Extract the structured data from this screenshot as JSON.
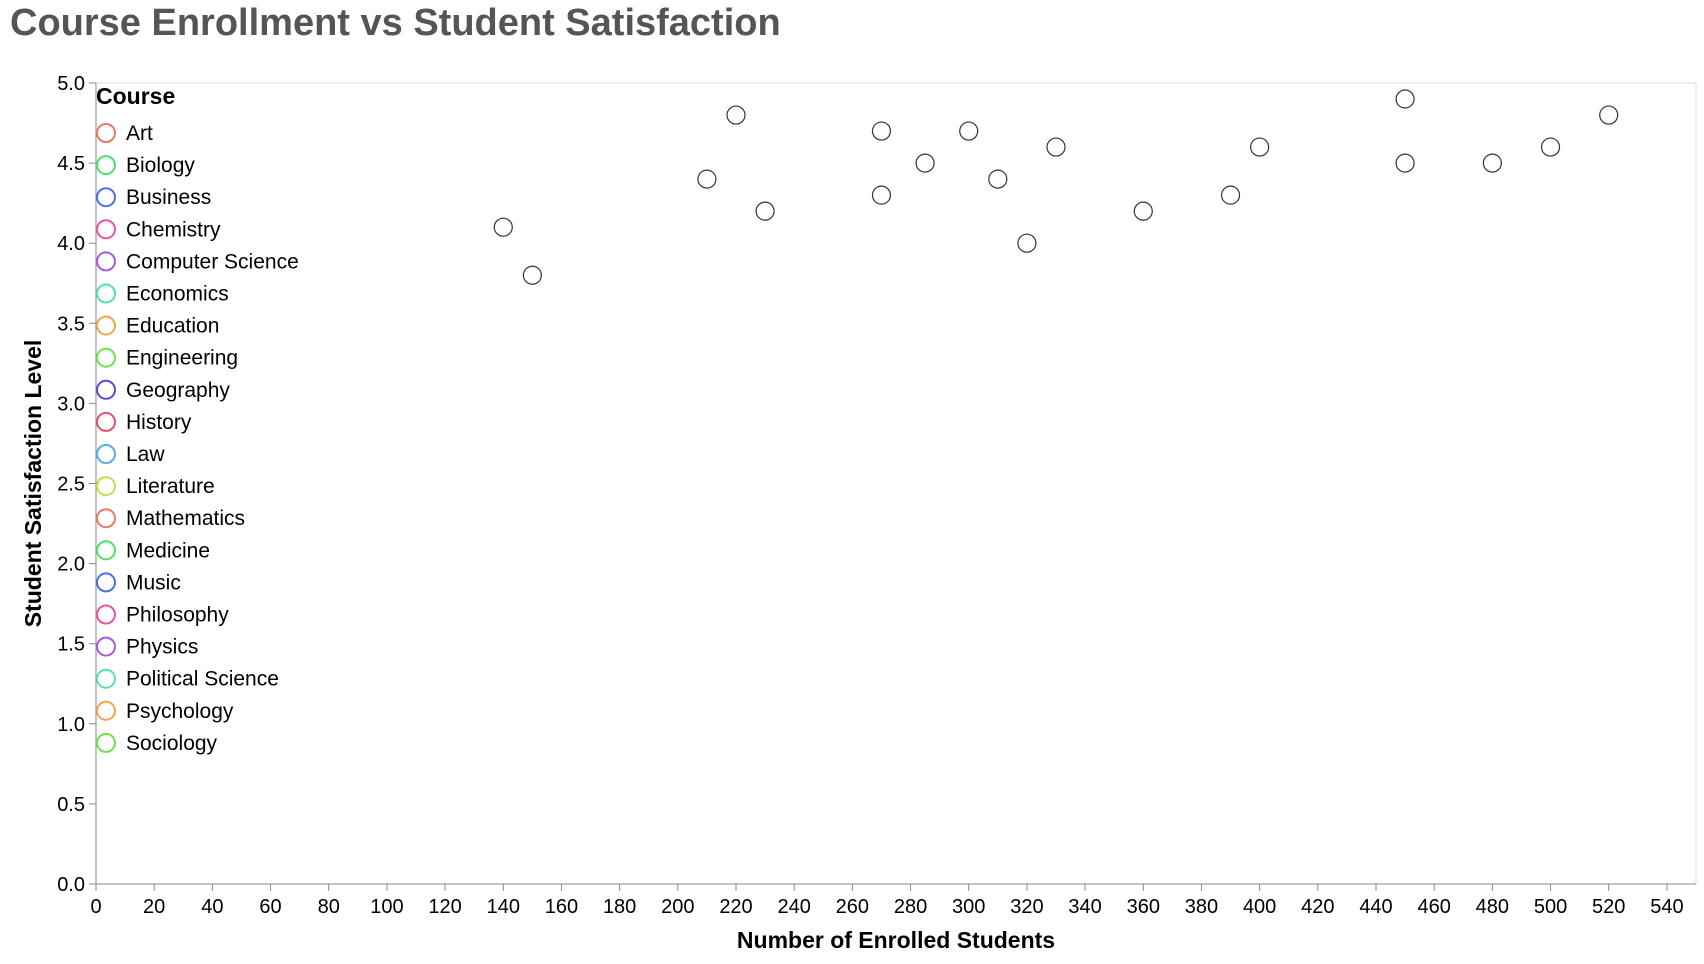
{
  "chart_data": {
    "type": "scatter",
    "title": "Course Enrollment vs Student Satisfaction",
    "xlabel": "Number of Enrolled Students",
    "ylabel": "Student Satisfaction Level",
    "xlim": [
      0,
      550
    ],
    "ylim": [
      0,
      5.0
    ],
    "x_ticks": [
      0,
      20,
      40,
      60,
      80,
      100,
      120,
      140,
      160,
      180,
      200,
      220,
      240,
      260,
      280,
      300,
      320,
      340,
      360,
      380,
      400,
      420,
      440,
      460,
      480,
      500,
      520,
      540
    ],
    "y_ticks": [
      "0.0",
      "0.5",
      "1.0",
      "1.5",
      "2.0",
      "2.5",
      "3.0",
      "3.5",
      "4.0",
      "4.5",
      "5.0"
    ],
    "grid": false,
    "legend": {
      "title": "Course",
      "position": "top-left",
      "items": [
        {
          "label": "Art",
          "color": "#ee7864"
        },
        {
          "label": "Biology",
          "color": "#4fe06c"
        },
        {
          "label": "Business",
          "color": "#4c6fe8"
        },
        {
          "label": "Chemistry",
          "color": "#ea55a0"
        },
        {
          "label": "Computer Science",
          "color": "#a55be6"
        },
        {
          "label": "Economics",
          "color": "#55e0b4"
        },
        {
          "label": "Education",
          "color": "#f0a64c"
        },
        {
          "label": "Engineering",
          "color": "#6be44c"
        },
        {
          "label": "Geography",
          "color": "#6145d8"
        },
        {
          "label": "History",
          "color": "#e6506a"
        },
        {
          "label": "Law",
          "color": "#55aee8"
        },
        {
          "label": "Literature",
          "color": "#bae44c"
        },
        {
          "label": "Mathematics",
          "color": "#ee7864"
        },
        {
          "label": "Medicine",
          "color": "#4fe06c"
        },
        {
          "label": "Music",
          "color": "#4c6fe8"
        },
        {
          "label": "Philosophy",
          "color": "#ea55a0"
        },
        {
          "label": "Physics",
          "color": "#a55be6"
        },
        {
          "label": "Political Science",
          "color": "#55e0b4"
        },
        {
          "label": "Psychology",
          "color": "#f0a64c"
        },
        {
          "label": "Sociology",
          "color": "#6be44c"
        }
      ]
    },
    "points": [
      {
        "x": 140,
        "y": 4.1
      },
      {
        "x": 150,
        "y": 3.8
      },
      {
        "x": 210,
        "y": 4.4
      },
      {
        "x": 220,
        "y": 4.8
      },
      {
        "x": 230,
        "y": 4.2
      },
      {
        "x": 270,
        "y": 4.7
      },
      {
        "x": 270,
        "y": 4.3
      },
      {
        "x": 285,
        "y": 4.5
      },
      {
        "x": 300,
        "y": 4.7
      },
      {
        "x": 310,
        "y": 4.4
      },
      {
        "x": 320,
        "y": 4.0
      },
      {
        "x": 330,
        "y": 4.6
      },
      {
        "x": 360,
        "y": 4.2
      },
      {
        "x": 390,
        "y": 4.3
      },
      {
        "x": 400,
        "y": 4.6
      },
      {
        "x": 450,
        "y": 4.9
      },
      {
        "x": 450,
        "y": 4.5
      },
      {
        "x": 480,
        "y": 4.5
      },
      {
        "x": 500,
        "y": 4.6
      },
      {
        "x": 520,
        "y": 4.8
      }
    ],
    "point_stroke": "#333333"
  }
}
